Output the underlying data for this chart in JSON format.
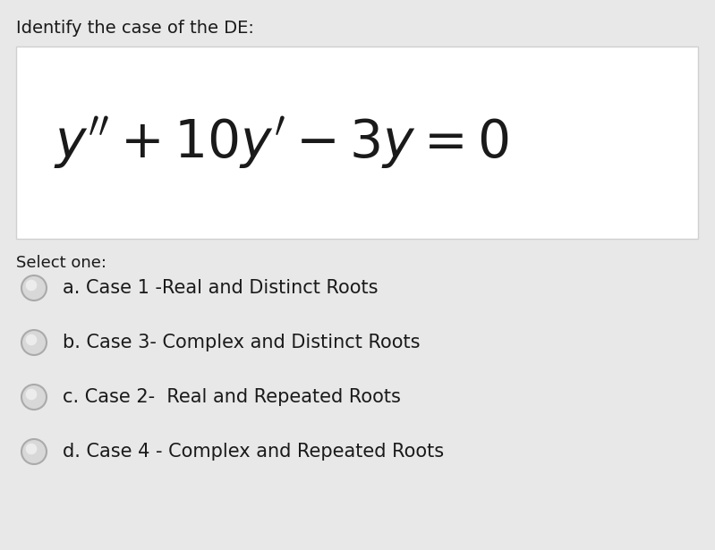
{
  "title": "Identify the case of the DE:",
  "equation": "$y'' + 10y' - 3y = 0$",
  "select_one": "Select one:",
  "options": [
    "a. Case 1 -Real and Distinct Roots",
    "b. Case 3- Complex and Distinct Roots",
    "c. Case 2-  Real and Repeated Roots",
    "d. Case 4 - Complex and Repeated Roots"
  ],
  "bg_color": "#e8e8e8",
  "box_color": "#ffffff",
  "box_edge_color": "#d0d0d0",
  "text_color": "#1a1a1a",
  "circle_edge_color": "#aaaaaa",
  "circle_face_color": "#d8d8d8",
  "title_fontsize": 14,
  "eq_fontsize": 42,
  "option_fontsize": 15,
  "select_fontsize": 13
}
